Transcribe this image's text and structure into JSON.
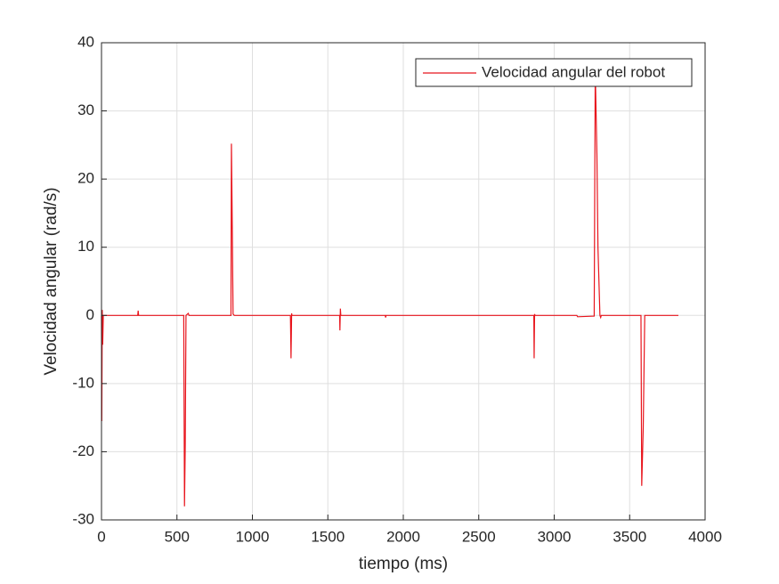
{
  "chart_data": {
    "type": "line",
    "xlabel": "tiempo (ms)",
    "ylabel": "Velocidad angular (rad/s)",
    "xlim": [
      0,
      4000
    ],
    "xticks": [
      0,
      500,
      1000,
      1500,
      2000,
      2500,
      3000,
      3500,
      4000
    ],
    "ylim": [
      -30,
      40
    ],
    "yticks": [
      -30,
      -20,
      -10,
      0,
      10,
      20,
      30,
      40
    ],
    "grid": true,
    "legend_position": "northeast",
    "series": [
      {
        "name": "Velocidad angular del robot",
        "color": "#e8141c",
        "x": [
          0,
          2,
          5,
          8,
          12,
          240,
          243,
          246,
          545,
          550,
          555,
          560,
          575,
          580,
          858,
          861,
          865,
          872,
          880,
          1252,
          1256,
          1260,
          1262,
          1578,
          1580,
          1583,
          1586,
          1880,
          1883,
          1886,
          2865,
          2867,
          2870,
          2873,
          3150,
          3155,
          3265,
          3272,
          3283,
          3290,
          3303,
          3308,
          3312,
          3575,
          3580,
          3590,
          3600,
          3823
        ],
        "values": [
          0,
          -15.5,
          0.8,
          -4.3,
          0,
          0,
          0.7,
          0,
          0,
          -28,
          -19,
          0,
          0.3,
          0,
          0,
          25.2,
          16.6,
          0.2,
          0,
          0,
          -6.3,
          0.3,
          0,
          0,
          -2.2,
          1,
          0,
          0,
          -0.3,
          0,
          0,
          -6.3,
          0.2,
          0,
          0,
          -0.2,
          -0.1,
          36,
          23.6,
          10,
          0,
          -0.3,
          0,
          0,
          -25,
          -16.5,
          0,
          0
        ]
      }
    ]
  }
}
